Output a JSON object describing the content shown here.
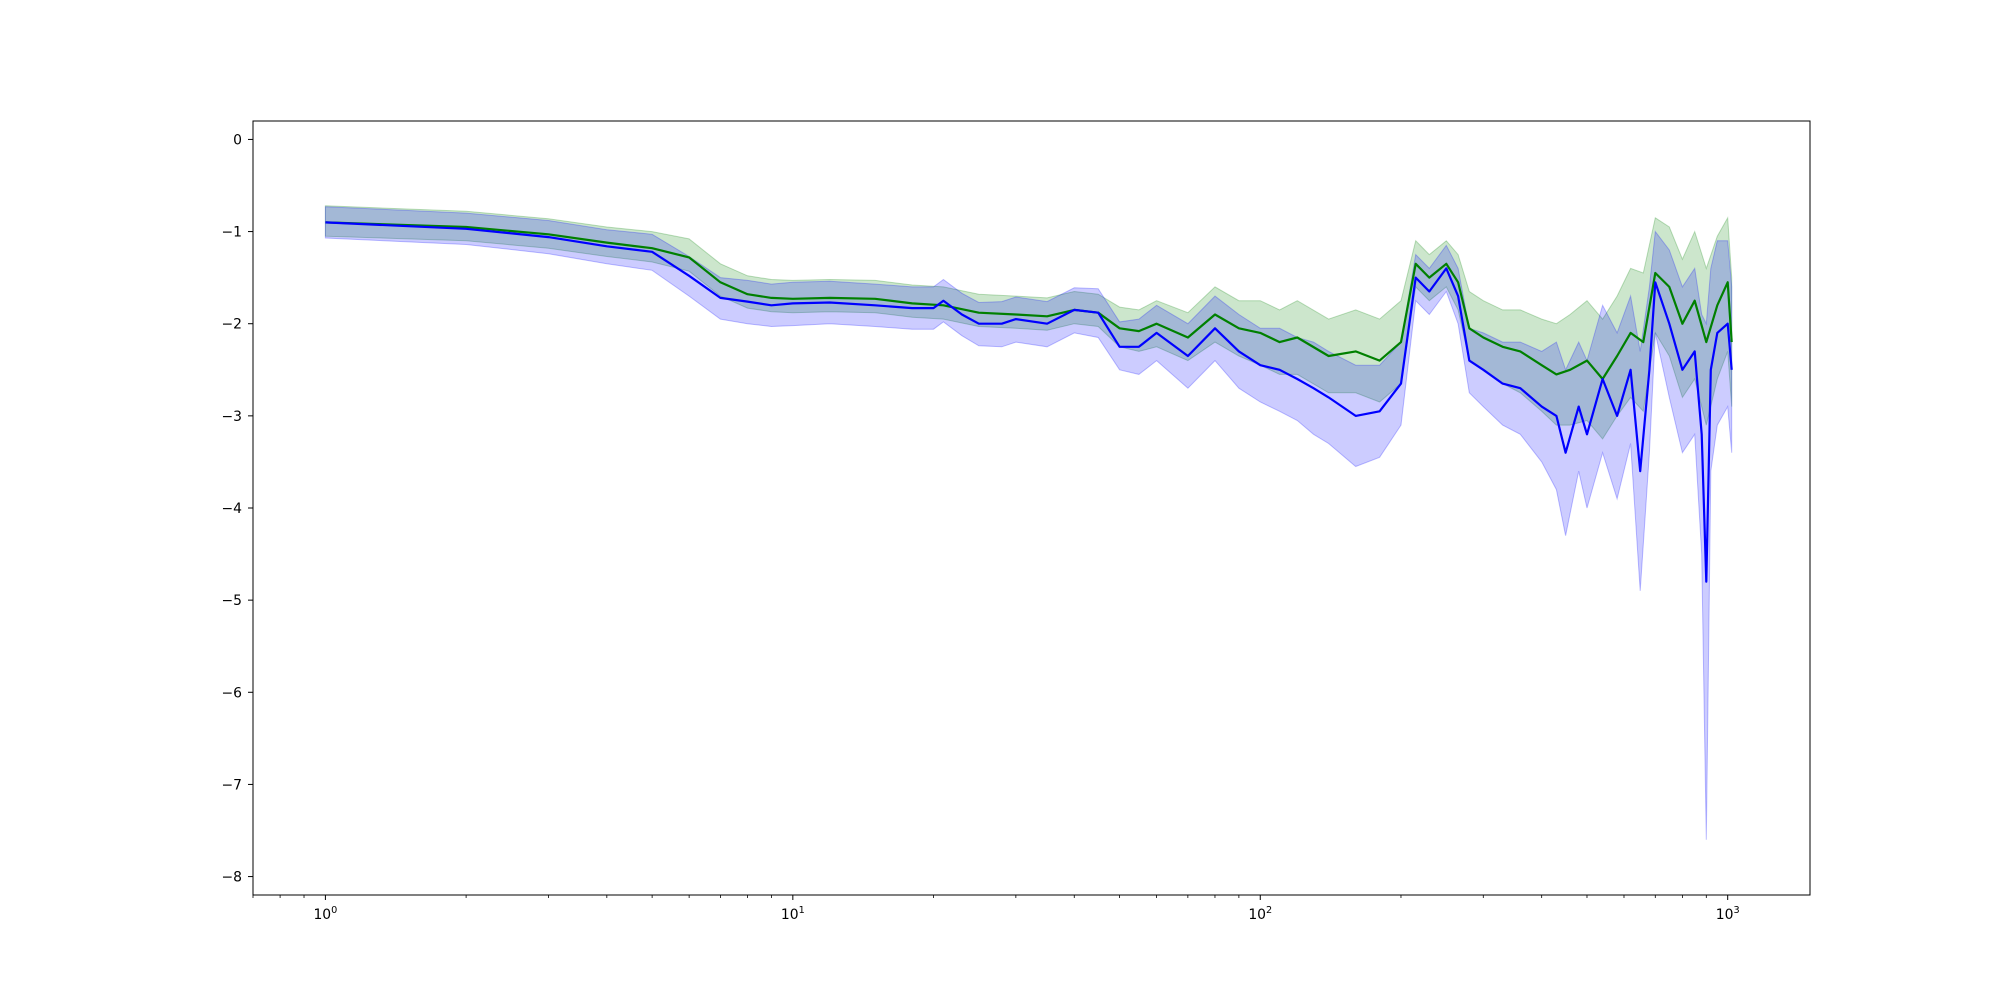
{
  "chart_data": {
    "type": "line",
    "title": "",
    "xlabel": "",
    "ylabel": "",
    "x_scale": "log",
    "xlim": [
      0.7,
      1500
    ],
    "ylim": [
      -8.2,
      0.2
    ],
    "x_ticks": [
      {
        "value": 1,
        "base": "10",
        "exp": "0"
      },
      {
        "value": 10,
        "base": "10",
        "exp": "1"
      },
      {
        "value": 100,
        "base": "10",
        "exp": "2"
      },
      {
        "value": 1000,
        "base": "10",
        "exp": "3"
      }
    ],
    "y_ticks": [
      {
        "value": 0,
        "label": "0"
      },
      {
        "value": -1,
        "label": "−1"
      },
      {
        "value": -2,
        "label": "−2"
      },
      {
        "value": -3,
        "label": "−3"
      },
      {
        "value": -4,
        "label": "−4"
      },
      {
        "value": -5,
        "label": "−5"
      },
      {
        "value": -6,
        "label": "−6"
      },
      {
        "value": -7,
        "label": "−7"
      },
      {
        "value": -8,
        "label": "−8"
      }
    ],
    "grid": false,
    "legend": "none",
    "series": [
      {
        "color": "#008000",
        "band_color": "#008000",
        "band_opacity": 0.2,
        "x": [
          1,
          2,
          3,
          4,
          5,
          6,
          7,
          8,
          9,
          10,
          12,
          15,
          18,
          21,
          25,
          30,
          35,
          40,
          45,
          50,
          55,
          60,
          70,
          80,
          90,
          100,
          110,
          120,
          140,
          160,
          180,
          200,
          215,
          230,
          250,
          265,
          280,
          300,
          330,
          360,
          400,
          430,
          460,
          500,
          540,
          580,
          620,
          660,
          700,
          750,
          800,
          850,
          900,
          950,
          1000,
          1020
        ],
        "y": [
          -0.9,
          -0.95,
          -1.03,
          -1.12,
          -1.18,
          -1.28,
          -1.55,
          -1.68,
          -1.72,
          -1.73,
          -1.72,
          -1.73,
          -1.78,
          -1.8,
          -1.88,
          -1.9,
          -1.92,
          -1.85,
          -1.88,
          -2.05,
          -2.08,
          -2.0,
          -2.15,
          -1.9,
          -2.05,
          -2.1,
          -2.2,
          -2.15,
          -2.35,
          -2.3,
          -2.4,
          -2.2,
          -1.35,
          -1.5,
          -1.35,
          -1.55,
          -2.05,
          -2.15,
          -2.25,
          -2.3,
          -2.45,
          -2.55,
          -2.5,
          -2.4,
          -2.6,
          -2.35,
          -2.1,
          -2.2,
          -1.45,
          -1.6,
          -2.0,
          -1.75,
          -2.2,
          -1.8,
          -1.55,
          -2.2
        ],
        "lower": [
          -1.05,
          -1.1,
          -1.18,
          -1.27,
          -1.33,
          -1.43,
          -1.7,
          -1.83,
          -1.87,
          -1.88,
          -1.87,
          -1.88,
          -1.93,
          -1.95,
          -2.03,
          -2.05,
          -2.07,
          -2.0,
          -2.03,
          -2.25,
          -2.3,
          -2.25,
          -2.4,
          -2.2,
          -2.35,
          -2.45,
          -2.55,
          -2.55,
          -2.75,
          -2.75,
          -2.85,
          -2.65,
          -1.6,
          -1.75,
          -1.6,
          -1.85,
          -2.4,
          -2.5,
          -2.65,
          -2.75,
          -2.95,
          -3.1,
          -3.1,
          -3.05,
          -3.25,
          -3.0,
          -2.8,
          -2.95,
          -2.1,
          -2.35,
          -2.8,
          -2.6,
          -3.1,
          -2.6,
          -2.3,
          -2.9
        ],
        "upper": [
          -0.72,
          -0.78,
          -0.86,
          -0.95,
          -1.0,
          -1.08,
          -1.35,
          -1.48,
          -1.52,
          -1.53,
          -1.52,
          -1.53,
          -1.58,
          -1.6,
          -1.68,
          -1.7,
          -1.72,
          -1.65,
          -1.68,
          -1.82,
          -1.85,
          -1.75,
          -1.88,
          -1.6,
          -1.75,
          -1.75,
          -1.85,
          -1.75,
          -1.95,
          -1.85,
          -1.95,
          -1.75,
          -1.1,
          -1.25,
          -1.1,
          -1.25,
          -1.65,
          -1.75,
          -1.85,
          -1.85,
          -1.95,
          -2.0,
          -1.9,
          -1.75,
          -1.95,
          -1.7,
          -1.4,
          -1.45,
          -0.85,
          -0.95,
          -1.3,
          -1.0,
          -1.4,
          -1.05,
          -0.85,
          -1.5
        ]
      },
      {
        "color": "#0000ff",
        "band_color": "#0000ff",
        "band_opacity": 0.2,
        "x": [
          1,
          2,
          3,
          4,
          5,
          6,
          7,
          8,
          9,
          10,
          12,
          15,
          18,
          20,
          21,
          23,
          25,
          28,
          30,
          35,
          40,
          45,
          50,
          55,
          60,
          70,
          80,
          90,
          100,
          110,
          120,
          130,
          140,
          160,
          180,
          200,
          215,
          230,
          250,
          265,
          280,
          300,
          330,
          360,
          400,
          430,
          450,
          480,
          500,
          540,
          580,
          620,
          650,
          680,
          700,
          750,
          800,
          850,
          880,
          900,
          920,
          950,
          1000,
          1020
        ],
        "y": [
          -0.9,
          -0.97,
          -1.06,
          -1.16,
          -1.22,
          -1.48,
          -1.72,
          -1.76,
          -1.8,
          -1.78,
          -1.77,
          -1.8,
          -1.83,
          -1.83,
          -1.75,
          -1.9,
          -2.0,
          -2.0,
          -1.95,
          -2.0,
          -1.85,
          -1.88,
          -2.25,
          -2.25,
          -2.1,
          -2.35,
          -2.05,
          -2.3,
          -2.45,
          -2.5,
          -2.6,
          -2.7,
          -2.8,
          -3.0,
          -2.95,
          -2.65,
          -1.5,
          -1.65,
          -1.4,
          -1.7,
          -2.4,
          -2.5,
          -2.65,
          -2.7,
          -2.9,
          -3.0,
          -3.4,
          -2.9,
          -3.2,
          -2.6,
          -3.0,
          -2.5,
          -3.6,
          -2.5,
          -1.55,
          -2.0,
          -2.5,
          -2.3,
          -3.2,
          -4.8,
          -2.5,
          -2.1,
          -2.0,
          -2.5
        ],
        "lower": [
          -1.07,
          -1.14,
          -1.24,
          -1.35,
          -1.42,
          -1.7,
          -1.95,
          -2.0,
          -2.03,
          -2.02,
          -2.0,
          -2.03,
          -2.06,
          -2.06,
          -1.98,
          -2.13,
          -2.24,
          -2.25,
          -2.2,
          -2.25,
          -2.1,
          -2.15,
          -2.5,
          -2.55,
          -2.4,
          -2.7,
          -2.4,
          -2.7,
          -2.85,
          -2.95,
          -3.05,
          -3.2,
          -3.3,
          -3.55,
          -3.45,
          -3.1,
          -1.75,
          -1.9,
          -1.65,
          -2.0,
          -2.75,
          -2.9,
          -3.1,
          -3.2,
          -3.5,
          -3.8,
          -4.3,
          -3.6,
          -4.0,
          -3.4,
          -3.9,
          -3.3,
          -4.9,
          -3.4,
          -2.1,
          -2.8,
          -3.4,
          -3.2,
          -4.5,
          -7.6,
          -3.6,
          -3.1,
          -2.9,
          -3.4
        ],
        "upper": [
          -0.73,
          -0.8,
          -0.88,
          -0.98,
          -1.03,
          -1.27,
          -1.5,
          -1.53,
          -1.57,
          -1.55,
          -1.54,
          -1.57,
          -1.6,
          -1.6,
          -1.52,
          -1.67,
          -1.77,
          -1.76,
          -1.71,
          -1.76,
          -1.61,
          -1.62,
          -1.98,
          -1.95,
          -1.8,
          -2.0,
          -1.7,
          -1.9,
          -2.05,
          -2.05,
          -2.15,
          -2.2,
          -2.3,
          -2.45,
          -2.45,
          -2.2,
          -1.25,
          -1.4,
          -1.15,
          -1.4,
          -2.05,
          -2.1,
          -2.2,
          -2.2,
          -2.3,
          -2.2,
          -2.5,
          -2.2,
          -2.4,
          -1.8,
          -2.1,
          -1.7,
          -2.3,
          -1.6,
          -1.0,
          -1.2,
          -1.6,
          -1.4,
          -1.9,
          -2.0,
          -1.4,
          -1.1,
          -1.1,
          -1.6
        ]
      }
    ]
  }
}
